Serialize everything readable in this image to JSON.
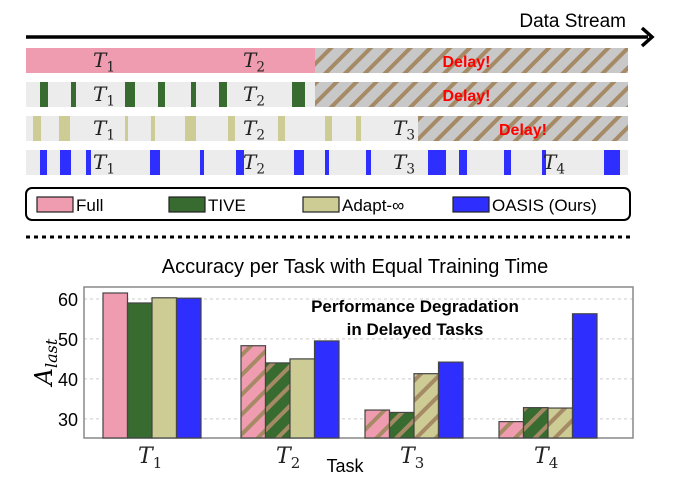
{
  "diagram": {
    "stream_label": "Data Stream",
    "delay_label": "Delay!",
    "rows": [
      {
        "method": "Full",
        "task_labels": [
          "T1",
          "T2"
        ],
        "delayed": true
      },
      {
        "method": "TIVE",
        "task_labels": [
          "T1",
          "T2"
        ],
        "delayed": true
      },
      {
        "method": "Adapt-∞",
        "task_labels": [
          "T1",
          "T2",
          "T3"
        ],
        "delayed": true
      },
      {
        "method": "OASIS (Ours)",
        "task_labels": [
          "T1",
          "T2",
          "T3",
          "T4"
        ],
        "delayed": false
      }
    ]
  },
  "legend": [
    {
      "label": "Full",
      "color": "#f09cb0"
    },
    {
      "label": "TIVE",
      "color": "#386b30"
    },
    {
      "label": "Adapt-∞",
      "color": "#cccc94"
    },
    {
      "label": "OASIS (Ours)",
      "color": "#2e2eff"
    }
  ],
  "colors": {
    "hatch": "#a58a65",
    "hatch_bg": "#c8c8c8",
    "row_bg": "#ececec",
    "delay_text": "#ff0000"
  },
  "chart_data": {
    "type": "bar",
    "title": "Accuracy per Task with Equal Training Time",
    "xlabel": "Task",
    "ylabel": "A_last",
    "annotation": [
      "Performance Degradation",
      "in Delayed Tasks"
    ],
    "categories": [
      "T1",
      "T2",
      "T3",
      "T4"
    ],
    "yticks": [
      30,
      40,
      50,
      60
    ],
    "ylim": [
      25.2,
      63
    ],
    "grid": true,
    "series": [
      {
        "name": "Full",
        "values": [
          61.5,
          48.3,
          32.2,
          29.3
        ],
        "hatched": [
          false,
          true,
          true,
          true
        ]
      },
      {
        "name": "TIVE",
        "values": [
          59.0,
          44.0,
          31.6,
          32.8
        ],
        "hatched": [
          false,
          true,
          true,
          true
        ]
      },
      {
        "name": "Adapt-∞",
        "values": [
          60.3,
          45.0,
          41.3,
          32.7
        ],
        "hatched": [
          false,
          false,
          true,
          true
        ]
      },
      {
        "name": "OASIS (Ours)",
        "values": [
          60.2,
          49.5,
          44.2,
          56.3
        ],
        "hatched": [
          false,
          false,
          false,
          false
        ]
      }
    ]
  }
}
